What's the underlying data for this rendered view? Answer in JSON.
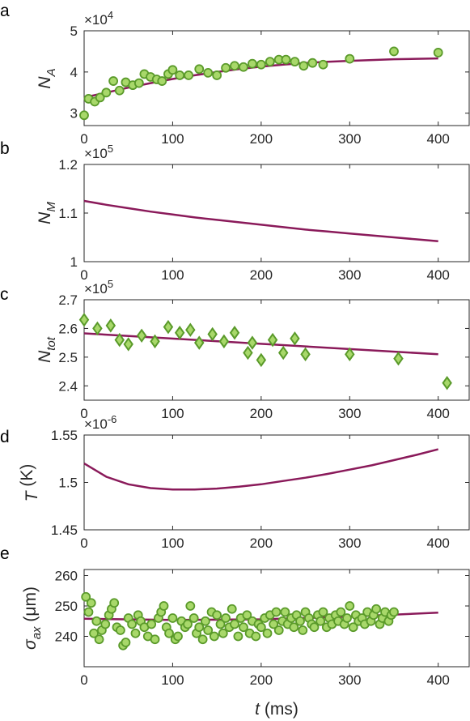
{
  "colors": {
    "model_line": "#8a1a5a",
    "marker_face": "#a8d86a",
    "marker_edge": "#5a9a2a",
    "axis": "#262626"
  },
  "xlabel_parts": {
    "t": "t",
    "unit": " (ms)"
  },
  "chart_data": [
    {
      "panel": "a",
      "type": "scatter",
      "ylabel_parts": {
        "main": "N",
        "sub": "A",
        "unit": ""
      },
      "exponent_parts": {
        "base": "×10",
        "power": "4"
      },
      "xlim": [
        0,
        435
      ],
      "ylim": [
        2.7,
        5
      ],
      "xticks": [
        0,
        100,
        200,
        300,
        400
      ],
      "yticks": [
        3,
        4,
        5
      ],
      "ytick_labels": [
        "3",
        "4",
        "5"
      ],
      "marker": "circle",
      "series": [
        {
          "kind": "model",
          "x": [
            0,
            25,
            50,
            75,
            100,
            125,
            150,
            175,
            200,
            225,
            250,
            275,
            300,
            325,
            350,
            375,
            400
          ],
          "y": [
            3.38,
            3.5,
            3.62,
            3.73,
            3.83,
            3.92,
            4.0,
            4.07,
            4.13,
            4.18,
            4.22,
            4.25,
            4.27,
            4.29,
            4.31,
            4.32,
            4.33
          ]
        },
        {
          "kind": "measured",
          "x": [
            0,
            5,
            12,
            18,
            25,
            33,
            40,
            47,
            55,
            62,
            68,
            75,
            82,
            88,
            95,
            100,
            108,
            118,
            130,
            140,
            150,
            160,
            170,
            180,
            190,
            200,
            210,
            220,
            228,
            238,
            248,
            258,
            270,
            300,
            350,
            400
          ],
          "y": [
            2.95,
            3.35,
            3.28,
            3.38,
            3.5,
            3.78,
            3.55,
            3.75,
            3.68,
            3.73,
            3.95,
            3.88,
            3.82,
            3.78,
            3.95,
            4.05,
            3.92,
            3.92,
            4.07,
            3.98,
            3.92,
            4.1,
            4.15,
            4.12,
            4.2,
            4.18,
            4.25,
            4.3,
            4.3,
            4.25,
            4.15,
            4.22,
            4.18,
            4.32,
            4.5,
            4.47
          ]
        }
      ]
    },
    {
      "panel": "b",
      "type": "line",
      "ylabel_parts": {
        "main": "N",
        "sub": "M",
        "unit": ""
      },
      "exponent_parts": {
        "base": "×10",
        "power": "5"
      },
      "xlim": [
        0,
        435
      ],
      "ylim": [
        1.0,
        1.2
      ],
      "xticks": [
        0,
        100,
        200,
        300,
        400
      ],
      "yticks": [
        1.0,
        1.1,
        1.2
      ],
      "ytick_labels": [
        "1",
        "1.1",
        "1.2"
      ],
      "series": [
        {
          "kind": "model",
          "x": [
            0,
            25,
            50,
            75,
            100,
            125,
            150,
            175,
            200,
            225,
            250,
            275,
            300,
            325,
            350,
            375,
            400
          ],
          "y": [
            1.125,
            1.117,
            1.11,
            1.103,
            1.097,
            1.091,
            1.086,
            1.081,
            1.076,
            1.071,
            1.066,
            1.062,
            1.058,
            1.054,
            1.05,
            1.046,
            1.042
          ]
        }
      ]
    },
    {
      "panel": "c",
      "type": "scatter",
      "ylabel_parts": {
        "main": "N",
        "sub": "tot",
        "unit": ""
      },
      "exponent_parts": {
        "base": "×10",
        "power": "5"
      },
      "xlim": [
        0,
        435
      ],
      "ylim": [
        2.35,
        2.7
      ],
      "xticks": [
        0,
        100,
        200,
        300,
        400
      ],
      "yticks": [
        2.4,
        2.5,
        2.6,
        2.7
      ],
      "ytick_labels": [
        "2.4",
        "2.5",
        "2.6",
        "2.7"
      ],
      "marker": "diamond",
      "series": [
        {
          "kind": "model",
          "x": [
            0,
            400
          ],
          "y": [
            2.583,
            2.51
          ]
        },
        {
          "kind": "measured",
          "x": [
            0,
            15,
            30,
            40,
            50,
            65,
            80,
            95,
            108,
            120,
            130,
            145,
            158,
            170,
            185,
            190,
            200,
            213,
            225,
            238,
            250,
            300,
            355,
            410
          ],
          "y": [
            2.63,
            2.6,
            2.61,
            2.56,
            2.545,
            2.575,
            2.555,
            2.605,
            2.585,
            2.595,
            2.55,
            2.58,
            2.555,
            2.585,
            2.515,
            2.55,
            2.49,
            2.56,
            2.515,
            2.565,
            2.51,
            2.51,
            2.495,
            2.41
          ]
        }
      ]
    },
    {
      "panel": "d",
      "type": "line",
      "ylabel_parts": {
        "main": "T",
        "sub": "",
        "unit": " (K)"
      },
      "exponent_parts": {
        "base": "×10",
        "power": "-6"
      },
      "xlim": [
        0,
        435
      ],
      "ylim": [
        1.45,
        1.55
      ],
      "xticks": [
        0,
        100,
        200,
        300,
        400
      ],
      "yticks": [
        1.45,
        1.5,
        1.55
      ],
      "ytick_labels": [
        "1.45",
        "1.5",
        "1.55"
      ],
      "series": [
        {
          "kind": "model",
          "x": [
            0,
            25,
            50,
            75,
            100,
            125,
            150,
            175,
            200,
            225,
            250,
            275,
            300,
            325,
            350,
            375,
            400
          ],
          "y": [
            1.52,
            1.506,
            1.498,
            1.494,
            1.4925,
            1.4925,
            1.4935,
            1.4955,
            1.498,
            1.5015,
            1.505,
            1.509,
            1.5135,
            1.518,
            1.5235,
            1.529,
            1.535
          ]
        }
      ]
    },
    {
      "panel": "e",
      "type": "scatter",
      "ylabel_parts": {
        "main": "σ",
        "sub": "ax",
        "unit": " (μm)"
      },
      "exponent_parts": {
        "base": "",
        "power": ""
      },
      "xlim": [
        0,
        435
      ],
      "ylim": [
        230,
        262
      ],
      "xticks": [
        0,
        100,
        200,
        300,
        400
      ],
      "yticks": [
        240,
        250,
        260
      ],
      "ytick_labels": [
        "240",
        "250",
        "260"
      ],
      "marker": "circle",
      "series": [
        {
          "kind": "model",
          "x": [
            0,
            100,
            200,
            300,
            400
          ],
          "y": [
            245.8,
            245.4,
            245.6,
            246.5,
            247.8
          ]
        },
        {
          "kind": "measured",
          "x": [
            2,
            5,
            8,
            11,
            14,
            17,
            20,
            24,
            28,
            31,
            34,
            37,
            41,
            44,
            47,
            50,
            54,
            58,
            61,
            64,
            68,
            72,
            76,
            80,
            84,
            87,
            90,
            93,
            96,
            100,
            103,
            106,
            110,
            114,
            117,
            120,
            124,
            127,
            130,
            134,
            137,
            140,
            144,
            147,
            150,
            154,
            157,
            160,
            164,
            167,
            170,
            174,
            177,
            180,
            184,
            187,
            190,
            194,
            197,
            200,
            204,
            207,
            210,
            214,
            217,
            220,
            224,
            227,
            230,
            234,
            237,
            240,
            244,
            247,
            250,
            254,
            257,
            260,
            264,
            267,
            270,
            274,
            277,
            280,
            284,
            287,
            290,
            294,
            297,
            300,
            304,
            307,
            310,
            314,
            317,
            320,
            324,
            327,
            330,
            334,
            337,
            340,
            344,
            347,
            350
          ],
          "y": [
            253,
            248,
            251,
            241,
            245,
            239,
            242,
            244,
            247,
            249,
            251,
            243,
            242,
            237,
            238,
            246,
            244,
            241,
            247,
            245,
            243,
            240,
            244,
            239,
            246,
            248,
            250,
            243,
            241,
            246,
            239,
            240,
            245,
            243,
            244,
            250,
            246,
            241,
            243,
            239,
            245,
            242,
            248,
            240,
            247,
            244,
            241,
            246,
            243,
            249,
            244,
            240,
            246,
            243,
            247,
            241,
            245,
            240,
            244,
            243,
            246,
            241,
            247,
            244,
            248,
            242,
            245,
            248,
            244,
            246,
            243,
            247,
            245,
            242,
            248,
            246,
            244,
            243,
            247,
            245,
            248,
            243,
            246,
            244,
            247,
            245,
            248,
            244,
            246,
            250,
            243,
            247,
            245,
            246,
            244,
            248,
            245,
            247,
            249,
            244,
            246,
            248,
            245,
            247,
            248
          ]
        }
      ]
    }
  ]
}
